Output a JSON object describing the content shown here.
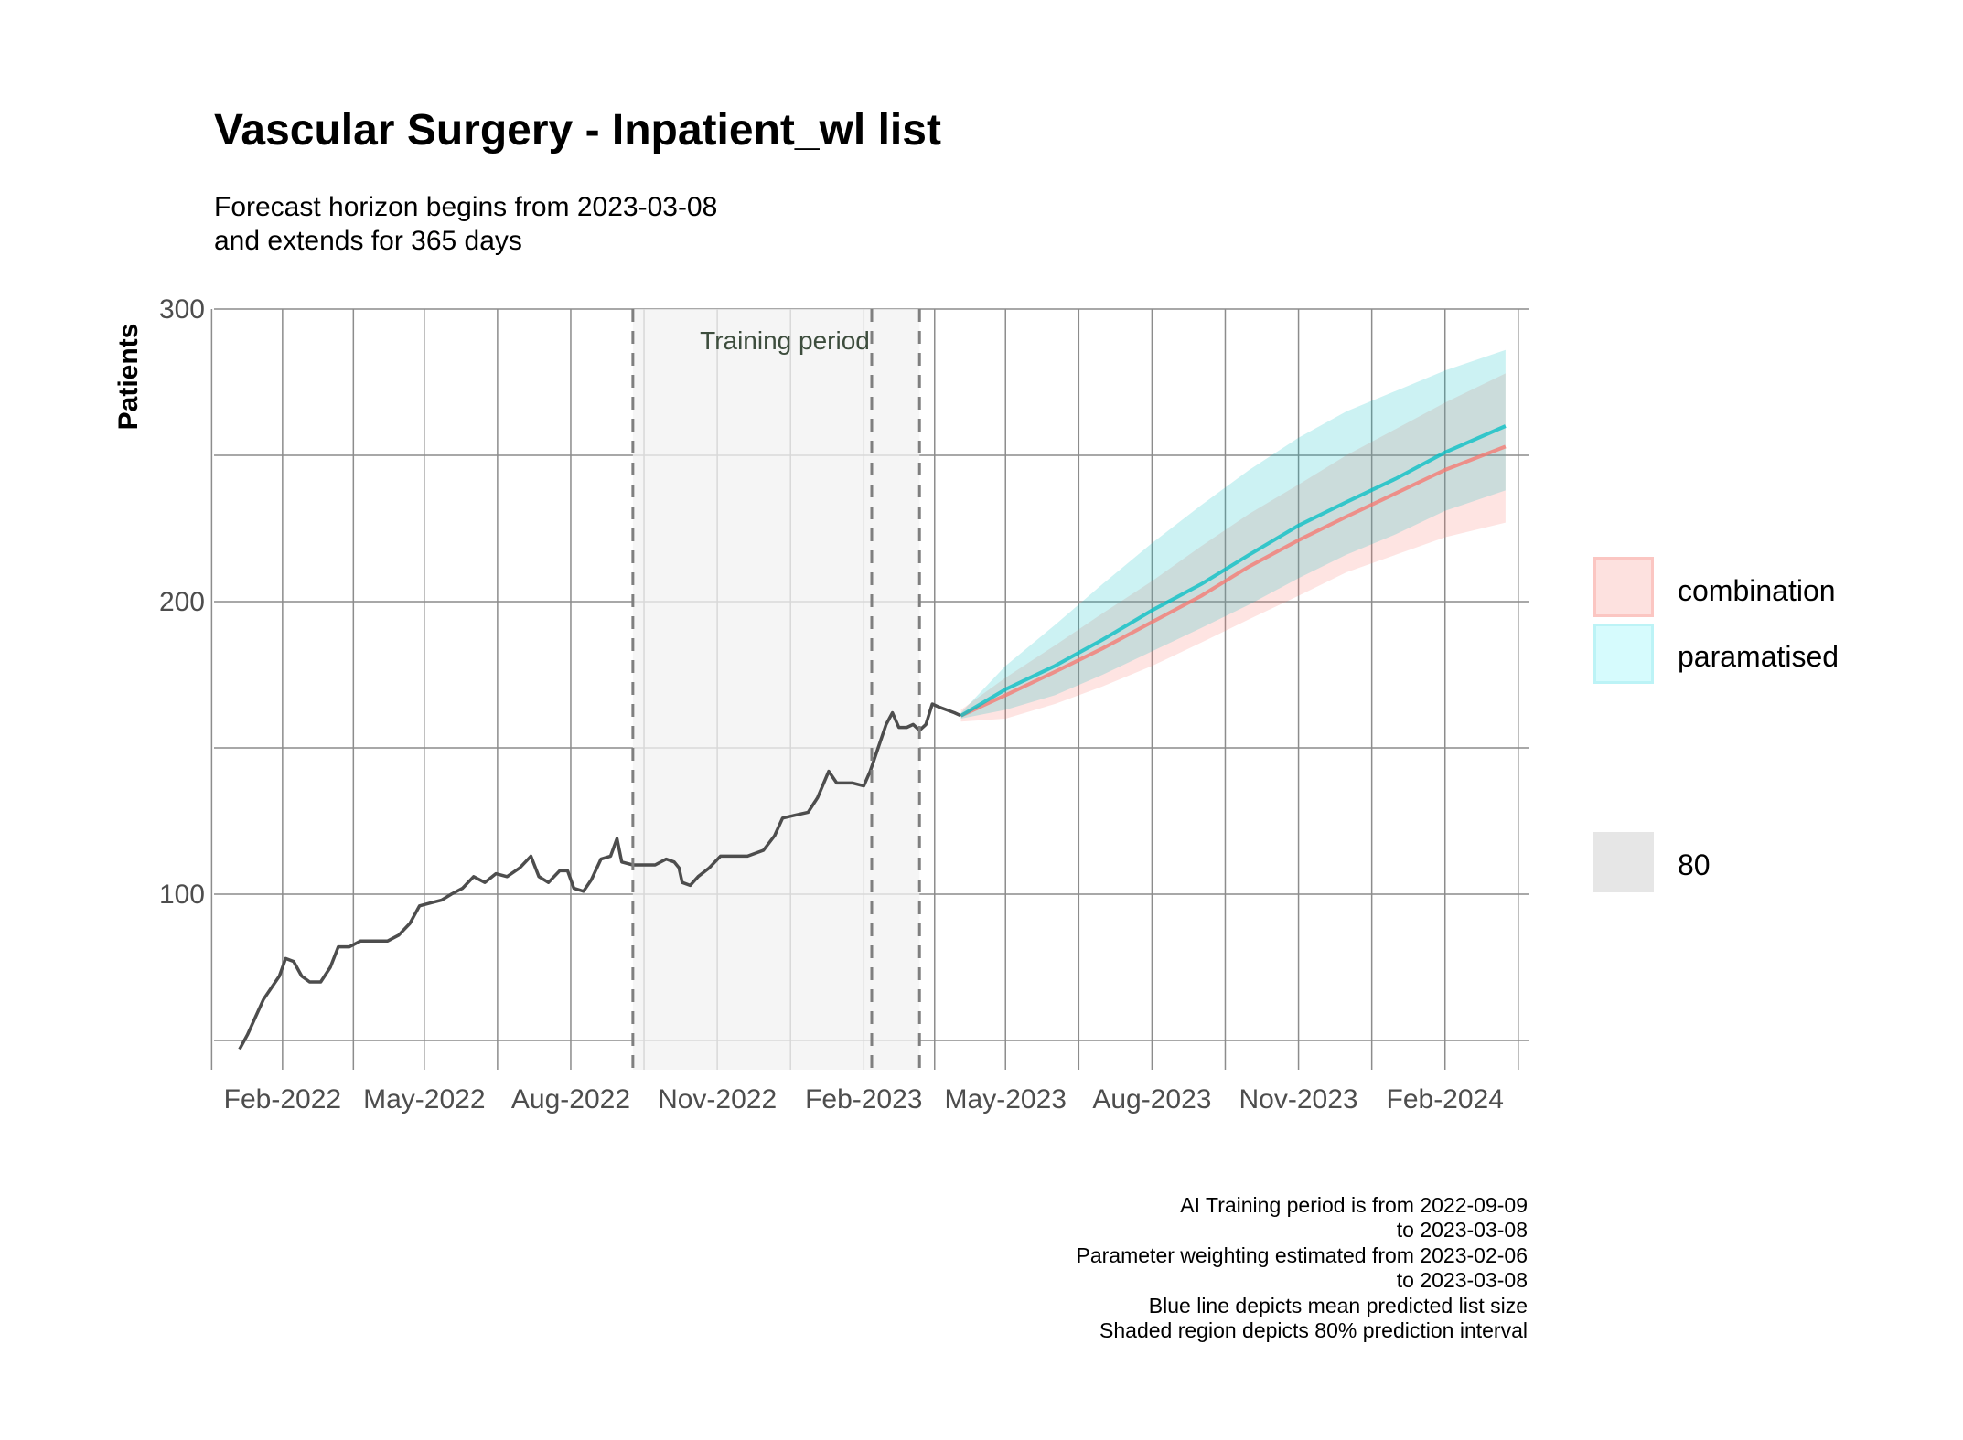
{
  "title": "Vascular Surgery - Inpatient_wl list",
  "subtitle": [
    "Forecast horizon begins from 2023-03-08",
    "and extends for 365 days"
  ],
  "caption": [
    "AI Training period is from 2022-09-09",
    "to 2023-03-08",
    "Parameter weighting estimated from 2023-02-06",
    "to 2023-03-08",
    "Blue line depicts mean predicted list size",
    "Shaded region depicts 80% prediction interval"
  ],
  "legend": {
    "series": [
      {
        "label": "combination",
        "color": "#F8766D"
      },
      {
        "label": "paramatised",
        "color": "#00BFC4"
      }
    ],
    "interval": {
      "label": "80",
      "color": "#BDBDBD"
    }
  },
  "chart_data": {
    "type": "line",
    "ylabel": "Patients",
    "xlabel": "",
    "x_ticks": [
      "Feb-2022",
      "May-2022",
      "Aug-2022",
      "Nov-2022",
      "Feb-2023",
      "May-2023",
      "Aug-2023",
      "Nov-2023",
      "Feb-2024"
    ],
    "x_tick_dates": [
      "2022-02-01",
      "2022-05-01",
      "2022-08-01",
      "2022-11-01",
      "2023-02-01",
      "2023-05-01",
      "2023-08-01",
      "2023-11-01",
      "2024-02-01"
    ],
    "xlim": [
      "2021-12-20",
      "2024-03-25"
    ],
    "y_ticks": [
      100,
      200,
      300
    ],
    "ylim": [
      40,
      300
    ],
    "grid": true,
    "training_period": {
      "label": "Training period",
      "start": "2022-09-09",
      "end": "2023-03-08"
    },
    "weighting_period": {
      "start": "2023-02-06",
      "end": "2023-03-08"
    },
    "observed": {
      "color": "#4D4D4D",
      "points": [
        [
          "2022-01-05",
          47
        ],
        [
          "2022-01-10",
          52
        ],
        [
          "2022-01-15",
          58
        ],
        [
          "2022-01-20",
          64
        ],
        [
          "2022-01-25",
          68
        ],
        [
          "2022-01-30",
          72
        ],
        [
          "2022-02-03",
          78
        ],
        [
          "2022-02-08",
          77
        ],
        [
          "2022-02-13",
          72
        ],
        [
          "2022-02-18",
          70
        ],
        [
          "2022-02-25",
          70
        ],
        [
          "2022-03-03",
          75
        ],
        [
          "2022-03-08",
          82
        ],
        [
          "2022-03-15",
          82
        ],
        [
          "2022-03-22",
          84
        ],
        [
          "2022-03-30",
          84
        ],
        [
          "2022-04-08",
          84
        ],
        [
          "2022-04-15",
          86
        ],
        [
          "2022-04-22",
          90
        ],
        [
          "2022-04-28",
          96
        ],
        [
          "2022-05-05",
          97
        ],
        [
          "2022-05-12",
          98
        ],
        [
          "2022-05-18",
          100
        ],
        [
          "2022-05-25",
          102
        ],
        [
          "2022-06-01",
          106
        ],
        [
          "2022-06-08",
          104
        ],
        [
          "2022-06-15",
          107
        ],
        [
          "2022-06-22",
          106
        ],
        [
          "2022-06-30",
          109
        ],
        [
          "2022-07-07",
          113
        ],
        [
          "2022-07-12",
          106
        ],
        [
          "2022-07-18",
          104
        ],
        [
          "2022-07-25",
          108
        ],
        [
          "2022-07-30",
          108
        ],
        [
          "2022-08-03",
          102
        ],
        [
          "2022-08-09",
          101
        ],
        [
          "2022-08-14",
          105
        ],
        [
          "2022-08-20",
          112
        ],
        [
          "2022-08-26",
          113
        ],
        [
          "2022-08-30",
          119
        ],
        [
          "2022-09-02",
          111
        ],
        [
          "2022-09-09",
          110
        ],
        [
          "2022-09-16",
          110
        ],
        [
          "2022-09-23",
          110
        ],
        [
          "2022-09-30",
          112
        ],
        [
          "2022-10-05",
          111
        ],
        [
          "2022-10-08",
          109
        ],
        [
          "2022-10-10",
          104
        ],
        [
          "2022-10-15",
          103
        ],
        [
          "2022-10-20",
          106
        ],
        [
          "2022-10-27",
          109
        ],
        [
          "2022-11-03",
          113
        ],
        [
          "2022-11-10",
          113
        ],
        [
          "2022-11-20",
          113
        ],
        [
          "2022-11-30",
          115
        ],
        [
          "2022-12-07",
          120
        ],
        [
          "2022-12-12",
          126
        ],
        [
          "2022-12-20",
          127
        ],
        [
          "2022-12-28",
          128
        ],
        [
          "2023-01-03",
          133
        ],
        [
          "2023-01-10",
          142
        ],
        [
          "2023-01-15",
          138
        ],
        [
          "2023-01-25",
          138
        ],
        [
          "2023-02-01",
          137
        ],
        [
          "2023-02-05",
          142
        ],
        [
          "2023-02-10",
          150
        ],
        [
          "2023-02-15",
          158
        ],
        [
          "2023-02-19",
          162
        ],
        [
          "2023-02-23",
          157
        ],
        [
          "2023-02-28",
          157
        ],
        [
          "2023-03-04",
          158
        ],
        [
          "2023-03-08",
          156
        ],
        [
          "2023-03-12",
          158
        ],
        [
          "2023-03-16",
          165
        ],
        [
          "2023-03-20",
          164
        ],
        [
          "2023-03-25",
          163
        ],
        [
          "2023-03-30",
          162
        ],
        [
          "2023-04-03",
          161
        ]
      ]
    },
    "series": [
      {
        "name": "combination",
        "color": "#F8766D",
        "points": [
          [
            "2023-04-03",
            161
          ],
          [
            "2023-05-01",
            168
          ],
          [
            "2023-06-01",
            176
          ],
          [
            "2023-07-01",
            184
          ],
          [
            "2023-08-01",
            193
          ],
          [
            "2023-09-01",
            202
          ],
          [
            "2023-10-01",
            212
          ],
          [
            "2023-11-01",
            221
          ],
          [
            "2023-12-01",
            229
          ],
          [
            "2024-01-01",
            237
          ],
          [
            "2024-02-01",
            245
          ],
          [
            "2024-03-10",
            253
          ]
        ],
        "lower": [
          [
            "2023-04-03",
            159
          ],
          [
            "2023-05-01",
            160
          ],
          [
            "2023-06-01",
            165
          ],
          [
            "2023-07-01",
            171
          ],
          [
            "2023-08-01",
            178
          ],
          [
            "2023-09-01",
            186
          ],
          [
            "2023-10-01",
            194
          ],
          [
            "2023-11-01",
            202
          ],
          [
            "2023-12-01",
            210
          ],
          [
            "2024-01-01",
            216
          ],
          [
            "2024-02-01",
            222
          ],
          [
            "2024-03-10",
            227
          ]
        ],
        "upper": [
          [
            "2023-04-03",
            163
          ],
          [
            "2023-05-01",
            174
          ],
          [
            "2023-06-01",
            185
          ],
          [
            "2023-07-01",
            196
          ],
          [
            "2023-08-01",
            207
          ],
          [
            "2023-09-01",
            219
          ],
          [
            "2023-10-01",
            230
          ],
          [
            "2023-11-01",
            240
          ],
          [
            "2023-12-01",
            250
          ],
          [
            "2024-01-01",
            259
          ],
          [
            "2024-02-01",
            268
          ],
          [
            "2024-03-10",
            278
          ]
        ]
      },
      {
        "name": "paramatised",
        "color": "#00BFC4",
        "points": [
          [
            "2023-04-03",
            161
          ],
          [
            "2023-05-01",
            170
          ],
          [
            "2023-06-01",
            178
          ],
          [
            "2023-07-01",
            187
          ],
          [
            "2023-08-01",
            197
          ],
          [
            "2023-09-01",
            206
          ],
          [
            "2023-10-01",
            216
          ],
          [
            "2023-11-01",
            226
          ],
          [
            "2023-12-01",
            234
          ],
          [
            "2024-01-01",
            242
          ],
          [
            "2024-02-01",
            251
          ],
          [
            "2024-03-10",
            260
          ]
        ],
        "lower": [
          [
            "2023-04-03",
            160
          ],
          [
            "2023-05-01",
            163
          ],
          [
            "2023-06-01",
            168
          ],
          [
            "2023-07-01",
            175
          ],
          [
            "2023-08-01",
            183
          ],
          [
            "2023-09-01",
            191
          ],
          [
            "2023-10-01",
            199
          ],
          [
            "2023-11-01",
            208
          ],
          [
            "2023-12-01",
            216
          ],
          [
            "2024-01-01",
            223
          ],
          [
            "2024-02-01",
            231
          ],
          [
            "2024-03-10",
            238
          ]
        ],
        "upper": [
          [
            "2023-04-03",
            162
          ],
          [
            "2023-05-01",
            178
          ],
          [
            "2023-06-01",
            192
          ],
          [
            "2023-07-01",
            206
          ],
          [
            "2023-08-01",
            220
          ],
          [
            "2023-09-01",
            233
          ],
          [
            "2023-10-01",
            245
          ],
          [
            "2023-11-01",
            256
          ],
          [
            "2023-12-01",
            265
          ],
          [
            "2024-01-01",
            272
          ],
          [
            "2024-02-01",
            279
          ],
          [
            "2024-03-10",
            286
          ]
        ]
      }
    ]
  }
}
